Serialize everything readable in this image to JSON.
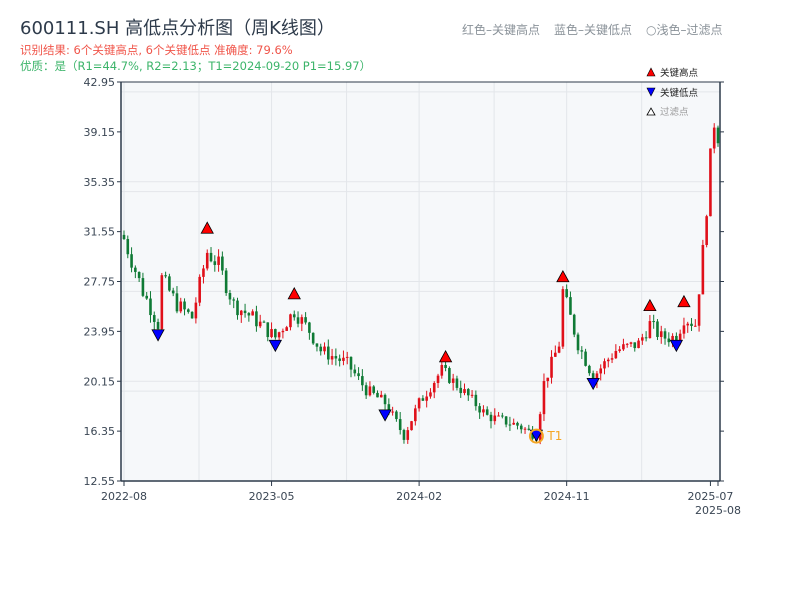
{
  "header": {
    "title": "600111.SH 高低点分析图（周K线图）",
    "result": "识别结果: 6个关键高点, 6个关键低点   准确度: 79.6%",
    "quality": "优质：是（R1=44.7%, R2=2.13；T1=2024-09-20 P1=15.97）",
    "hint_high": "红色–关键高点",
    "hint_low": "蓝色–关键低点",
    "hint_filtered": "○浅色–过滤点"
  },
  "legend": {
    "high": "关键高点",
    "low": "关键低点",
    "filtered": "过滤点"
  },
  "colors": {
    "up": "#e0101a",
    "down": "#0f7a35",
    "high_marker": "#ff0000",
    "low_marker": "#0000ff",
    "t1": "#f5a623",
    "plot_bg": "#f6f8fa"
  },
  "chart_data": {
    "type": "candlestick",
    "title": "600111.SH 高低点分析图（周K线图）",
    "ylim": [
      12.55,
      42.95
    ],
    "yticks": [
      "12.55",
      "16.35",
      "20.15",
      "23.95",
      "27.75",
      "31.55",
      "35.35",
      "39.15",
      "42.95"
    ],
    "xticks": [
      {
        "label": "2022-08",
        "week": 0
      },
      {
        "label": "2023-05",
        "week": 39
      },
      {
        "label": "2024-02",
        "week": 78
      },
      {
        "label": "2024-11",
        "week": 117
      },
      {
        "label": "2025-07",
        "week": 155
      },
      {
        "label": "2025-08",
        "week": 157
      }
    ],
    "close_anchors": [
      [
        0,
        31
      ],
      [
        5,
        27
      ],
      [
        9,
        24.5
      ],
      [
        10,
        28
      ],
      [
        14,
        26
      ],
      [
        18,
        25
      ],
      [
        22,
        30
      ],
      [
        25,
        29
      ],
      [
        29,
        26
      ],
      [
        34,
        25
      ],
      [
        40,
        23.5
      ],
      [
        45,
        25.5
      ],
      [
        49,
        24
      ],
      [
        52,
        22.5
      ],
      [
        59,
        21.5
      ],
      [
        64,
        19.5
      ],
      [
        69,
        18.5
      ],
      [
        74,
        16
      ],
      [
        78,
        18.5
      ],
      [
        84,
        21
      ],
      [
        91,
        19
      ],
      [
        96,
        17.5
      ],
      [
        104,
        16.8
      ],
      [
        109,
        16
      ],
      [
        111,
        20
      ],
      [
        115,
        23
      ],
      [
        116,
        27
      ],
      [
        120,
        23
      ],
      [
        124,
        20.5
      ],
      [
        130,
        22.5
      ],
      [
        136,
        23
      ],
      [
        139,
        24.5
      ],
      [
        142,
        23.5
      ],
      [
        146,
        23.5
      ],
      [
        148,
        25
      ],
      [
        151,
        24.5
      ],
      [
        153,
        30
      ],
      [
        155,
        37
      ],
      [
        156,
        40
      ],
      [
        157,
        39
      ]
    ],
    "key_highs": [
      {
        "week": 22,
        "price": 31.2
      },
      {
        "week": 45,
        "price": 26.2
      },
      {
        "week": 85,
        "price": 21.4
      },
      {
        "week": 116,
        "price": 27.5
      },
      {
        "week": 139,
        "price": 25.3
      },
      {
        "week": 148,
        "price": 25.6
      }
    ],
    "key_lows": [
      {
        "week": 9,
        "price": 24.3
      },
      {
        "week": 40,
        "price": 23.5
      },
      {
        "week": 69,
        "price": 18.2
      },
      {
        "week": 109,
        "price": 15.97
      },
      {
        "week": 124,
        "price": 20.6
      },
      {
        "week": 146,
        "price": 23.5
      }
    ],
    "t1": {
      "label": "T1",
      "week": 109,
      "price": 15.97
    }
  }
}
